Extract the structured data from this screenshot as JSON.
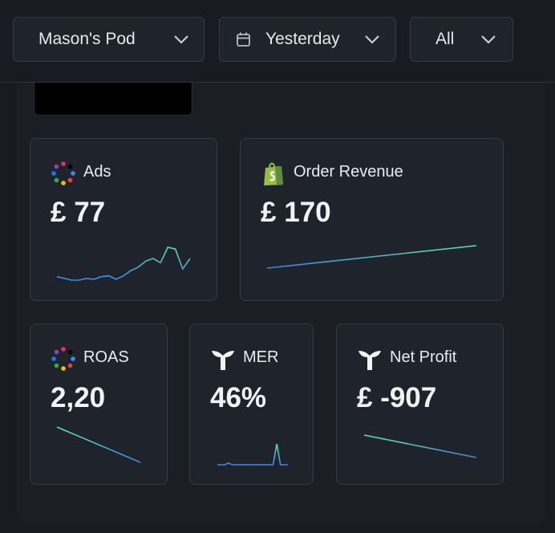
{
  "filters": [
    {
      "label": "Mason's Pod"
    },
    {
      "label": "Yesterday"
    },
    {
      "label": "All"
    }
  ],
  "cards": [
    {
      "title": "Ads",
      "value": "£ 77",
      "sparkline": [
        6,
        4,
        2,
        2,
        4,
        3,
        6,
        7,
        3,
        7,
        13,
        17,
        24,
        27,
        22,
        40,
        38,
        15,
        27
      ]
    },
    {
      "title": "Order Revenue",
      "value": "£ 170",
      "sparkline": [
        0,
        28
      ]
    },
    {
      "title": "ROAS",
      "value": "2,20",
      "sparkline": [
        44,
        0
      ]
    },
    {
      "title": "MER",
      "value": "46%",
      "sparkline": [
        0,
        0,
        0,
        2,
        0,
        0,
        0,
        0,
        0,
        0,
        0,
        0,
        0,
        0,
        0,
        0,
        25,
        0,
        0,
        0
      ]
    },
    {
      "title": "Net Profit",
      "value": "£ -907",
      "sparkline": [
        36,
        0
      ]
    }
  ]
}
